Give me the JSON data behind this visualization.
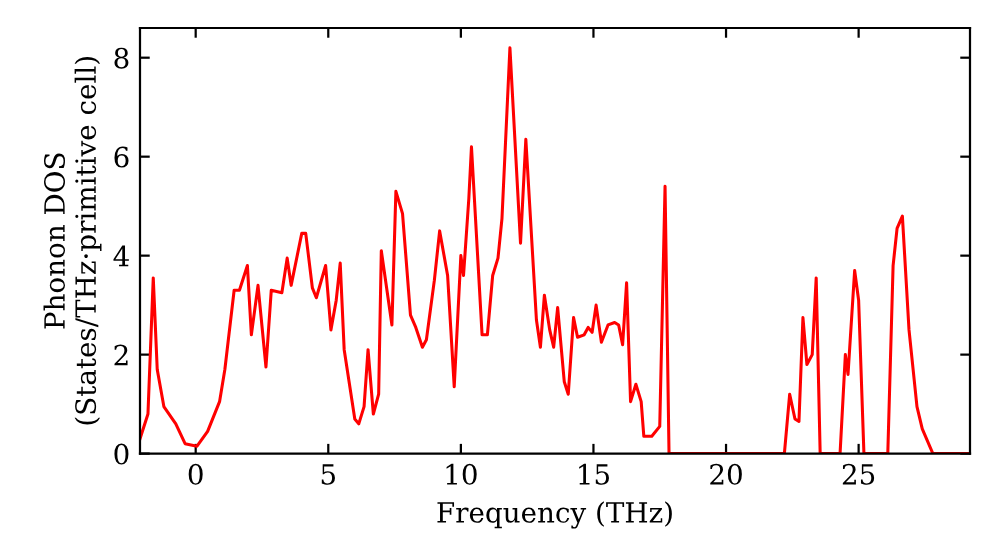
{
  "chart_data": {
    "type": "line",
    "xlabel": "Frequency (THz)",
    "ylabel": "Phonon DOS\n(States/THz·primitive cell)",
    "xlim": [
      -2.1,
      29.2
    ],
    "ylim": [
      0,
      8.6
    ],
    "xticks": [
      0,
      5,
      10,
      15,
      20,
      25
    ],
    "yticks": [
      0,
      2,
      4,
      6,
      8
    ],
    "grid": false,
    "marker": "none",
    "line_style": "solid",
    "series": [
      {
        "color": "#ff0000",
        "x": [
          -2.1,
          -1.8,
          -1.6,
          -1.45,
          -1.2,
          -0.75,
          -0.4,
          0.05,
          0.45,
          0.9,
          1.1,
          1.45,
          1.65,
          1.95,
          2.1,
          2.35,
          2.65,
          2.85,
          3.25,
          3.45,
          3.6,
          4.0,
          4.15,
          4.4,
          4.55,
          4.9,
          5.1,
          5.3,
          5.45,
          5.6,
          6.0,
          6.15,
          6.35,
          6.5,
          6.7,
          6.9,
          7.0,
          7.4,
          7.55,
          7.8,
          8.1,
          8.3,
          8.55,
          8.7,
          9.0,
          9.2,
          9.5,
          9.75,
          10.0,
          10.1,
          10.3,
          10.4,
          10.8,
          11.0,
          11.2,
          11.4,
          11.55,
          11.85,
          12.25,
          12.45,
          12.85,
          13.0,
          13.15,
          13.35,
          13.5,
          13.65,
          13.9,
          14.05,
          14.25,
          14.4,
          14.65,
          14.8,
          14.95,
          15.1,
          15.3,
          15.55,
          15.8,
          15.95,
          16.1,
          16.25,
          16.4,
          16.6,
          16.8,
          16.9,
          17.2,
          17.5,
          17.7,
          17.85,
          22.2,
          22.4,
          22.6,
          22.75,
          22.9,
          23.05,
          23.25,
          23.4,
          23.55,
          24.3,
          24.5,
          24.6,
          24.85,
          25.0,
          25.2,
          26.1,
          26.3,
          26.45,
          26.65,
          26.9,
          27.2,
          27.4,
          27.8,
          29.2
        ],
        "values": [
          0.3,
          0.8,
          3.55,
          1.7,
          0.95,
          0.6,
          0.2,
          0.15,
          0.45,
          1.05,
          1.7,
          3.3,
          3.3,
          3.8,
          2.4,
          3.4,
          1.75,
          3.3,
          3.25,
          3.95,
          3.4,
          4.45,
          4.45,
          3.35,
          3.15,
          3.8,
          2.5,
          3.1,
          3.85,
          2.1,
          0.7,
          0.6,
          0.95,
          2.1,
          0.8,
          1.2,
          4.1,
          2.6,
          5.3,
          4.85,
          2.8,
          2.55,
          2.15,
          2.3,
          3.5,
          4.5,
          3.6,
          1.35,
          4.0,
          3.6,
          5.15,
          6.2,
          2.4,
          2.4,
          3.6,
          3.95,
          4.75,
          8.2,
          4.25,
          6.35,
          2.7,
          2.15,
          3.2,
          2.5,
          2.15,
          2.95,
          1.45,
          1.2,
          2.75,
          2.35,
          2.4,
          2.55,
          2.45,
          3.0,
          2.25,
          2.6,
          2.65,
          2.6,
          2.2,
          3.45,
          1.05,
          1.4,
          1.05,
          0.35,
          0.35,
          0.55,
          5.4,
          0,
          0,
          1.2,
          0.7,
          0.65,
          2.75,
          1.8,
          2.0,
          3.55,
          0,
          0,
          2.0,
          1.6,
          3.7,
          3.1,
          0,
          0,
          3.8,
          4.55,
          4.8,
          2.5,
          0.95,
          0.5,
          0,
          0
        ]
      }
    ]
  }
}
